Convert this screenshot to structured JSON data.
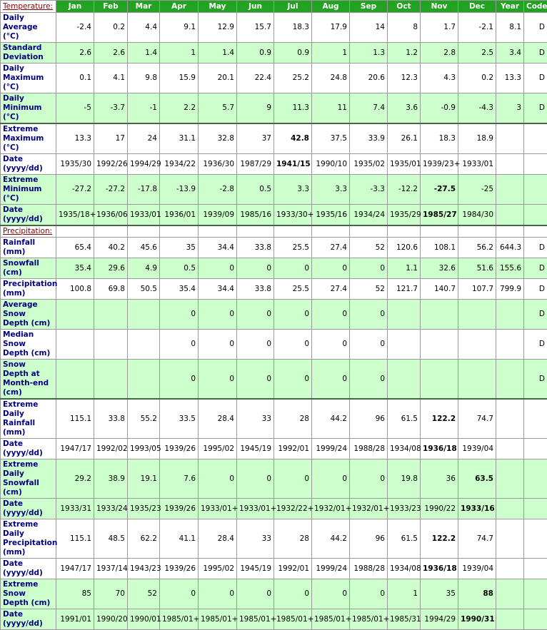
{
  "header": {
    "columns": [
      "Jan",
      "Feb",
      "Mar",
      "Apr",
      "May",
      "Jun",
      "Jul",
      "Aug",
      "Sep",
      "Oct",
      "Nov",
      "Dec",
      "Year",
      "Code"
    ]
  },
  "sections": [
    {
      "title": "Temperature:",
      "rows": [
        {
          "label": "Daily Average (°C)",
          "shade": false,
          "cells": [
            "-2.4",
            "0.2",
            "4.4",
            "9.1",
            "12.9",
            "15.7",
            "18.3",
            "17.9",
            "14",
            "8",
            "1.7",
            "-2.1",
            "8.1",
            "D"
          ]
        },
        {
          "label": "Standard Deviation",
          "shade": true,
          "cells": [
            "2.6",
            "2.6",
            "1.4",
            "1",
            "1.4",
            "0.9",
            "0.9",
            "1",
            "1.3",
            "1.2",
            "2.8",
            "2.5",
            "3.4",
            "D"
          ]
        },
        {
          "label": "Daily Maximum (°C)",
          "shade": false,
          "cells": [
            "0.1",
            "4.1",
            "9.8",
            "15.9",
            "20.1",
            "22.4",
            "25.2",
            "24.8",
            "20.6",
            "12.3",
            "4.3",
            "0.2",
            "13.3",
            "D"
          ]
        },
        {
          "label": "Daily Minimum (°C)",
          "shade": true,
          "cells": [
            "-5",
            "-3.7",
            "-1",
            "2.2",
            "5.7",
            "9",
            "11.3",
            "11",
            "7.4",
            "3.6",
            "-0.9",
            "-4.3",
            "3",
            "D"
          ]
        },
        {
          "label": "Extreme Maximum (°C)",
          "shade": false,
          "bold": 6,
          "cells": [
            "13.3",
            "17",
            "24",
            "31.1",
            "32.8",
            "37",
            "42.8",
            "37.5",
            "33.9",
            "26.1",
            "18.3",
            "18.9",
            null,
            null
          ]
        },
        {
          "label": "Date (yyyy/dd)",
          "shade": false,
          "bold": 6,
          "cells": [
            "1935/30",
            "1992/26",
            "1994/29",
            "1934/22",
            "1936/30",
            "1987/29",
            "1941/15",
            "1990/10",
            "1935/02",
            "1935/01",
            "1939/23+",
            "1933/01",
            null,
            null
          ]
        },
        {
          "label": "Extreme Minimum (°C)",
          "shade": true,
          "bold": 10,
          "cells": [
            "-27.2",
            "-27.2",
            "-17.8",
            "-13.9",
            "-2.8",
            "0.5",
            "3.3",
            "3.3",
            "-3.3",
            "-12.2",
            "-27.5",
            "-25",
            null,
            null
          ]
        },
        {
          "label": "Date (yyyy/dd)",
          "shade": true,
          "bold": 10,
          "cells": [
            "1935/18+",
            "1936/06",
            "1933/01",
            "1936/01",
            "1939/09",
            "1985/16",
            "1933/30+",
            "1935/16",
            "1934/24",
            "1935/29",
            "1985/27",
            "1984/30",
            null,
            null
          ]
        }
      ]
    },
    {
      "title": "Precipitation:",
      "rows": [
        {
          "label": "Rainfall (mm)",
          "shade": false,
          "cells": [
            "65.4",
            "40.2",
            "45.6",
            "35",
            "34.4",
            "33.8",
            "25.5",
            "27.4",
            "52",
            "120.6",
            "108.1",
            "56.2",
            "644.3",
            "D"
          ]
        },
        {
          "label": "Snowfall (cm)",
          "shade": true,
          "cells": [
            "35.4",
            "29.6",
            "4.9",
            "0.5",
            "0",
            "0",
            "0",
            "0",
            "0",
            "1.1",
            "32.6",
            "51.6",
            "155.6",
            "D"
          ]
        },
        {
          "label": "Precipitation (mm)",
          "shade": false,
          "cells": [
            "100.8",
            "69.8",
            "50.5",
            "35.4",
            "34.4",
            "33.8",
            "25.5",
            "27.4",
            "52",
            "121.7",
            "140.7",
            "107.7",
            "799.9",
            "D"
          ]
        },
        {
          "label": "Average Snow Depth (cm)",
          "shade": true,
          "cells": [
            null,
            null,
            null,
            "0",
            "0",
            "0",
            "0",
            "0",
            "0",
            null,
            null,
            null,
            null,
            "D"
          ]
        },
        {
          "label": "Median Snow Depth (cm)",
          "shade": false,
          "cells": [
            null,
            null,
            null,
            "0",
            "0",
            "0",
            "0",
            "0",
            "0",
            null,
            null,
            null,
            null,
            "D"
          ]
        },
        {
          "label": "Snow Depth at Month-end (cm)",
          "shade": true,
          "cells": [
            null,
            null,
            null,
            "0",
            "0",
            "0",
            "0",
            "0",
            "0",
            null,
            null,
            null,
            null,
            "D"
          ]
        },
        {
          "label": "Extreme Daily Rainfall (mm)",
          "shade": false,
          "bold": 10,
          "cells": [
            "115.1",
            "33.8",
            "55.2",
            "33.5",
            "28.4",
            "33",
            "28",
            "44.2",
            "96",
            "61.5",
            "122.2",
            "74.7",
            null,
            null
          ]
        },
        {
          "label": "Date (yyyy/dd)",
          "shade": false,
          "bold": 10,
          "cells": [
            "1947/17",
            "1992/02",
            "1993/05",
            "1939/26",
            "1995/02",
            "1945/19",
            "1992/01",
            "1999/24",
            "1988/28",
            "1934/08",
            "1936/18",
            "1939/04",
            null,
            null
          ]
        },
        {
          "label": "Extreme Daily Snowfall (cm)",
          "shade": true,
          "bold": 11,
          "cells": [
            "29.2",
            "38.9",
            "19.1",
            "7.6",
            "0",
            "0",
            "0",
            "0",
            "0",
            "19.8",
            "36",
            "63.5",
            null,
            null
          ]
        },
        {
          "label": "Date (yyyy/dd)",
          "shade": true,
          "bold": 11,
          "cells": [
            "1933/31",
            "1933/24",
            "1935/23",
            "1939/26",
            "1933/01+",
            "1933/01+",
            "1932/22+",
            "1932/01+",
            "1932/01+",
            "1933/23",
            "1990/22",
            "1933/16",
            null,
            null
          ]
        },
        {
          "label": "Extreme Daily Precipitation (mm)",
          "shade": false,
          "bold": 10,
          "cells": [
            "115.1",
            "48.5",
            "62.2",
            "41.1",
            "28.4",
            "33",
            "28",
            "44.2",
            "96",
            "61.5",
            "122.2",
            "74.7",
            null,
            null
          ]
        },
        {
          "label": "Date (yyyy/dd)",
          "shade": false,
          "bold": 10,
          "cells": [
            "1947/17",
            "1937/14",
            "1943/23",
            "1939/26",
            "1995/02",
            "1945/19",
            "1992/01",
            "1999/24",
            "1988/28",
            "1934/08",
            "1936/18",
            "1939/04",
            null,
            null
          ]
        },
        {
          "label": "Extreme Snow Depth (cm)",
          "shade": true,
          "bold": 11,
          "cells": [
            "85",
            "70",
            "52",
            "0",
            "0",
            "0",
            "0",
            "0",
            "0",
            "1",
            "35",
            "88",
            null,
            null
          ]
        },
        {
          "label": "Date (yyyy/dd)",
          "shade": true,
          "bold": 11,
          "cells": [
            "1991/01",
            "1990/20",
            "1990/01",
            "1985/01+",
            "1985/01+",
            "1985/01+",
            "1985/01+",
            "1985/01+",
            "1985/01+",
            "1985/31",
            "1994/29",
            "1990/31",
            null,
            null
          ]
        }
      ]
    }
  ]
}
